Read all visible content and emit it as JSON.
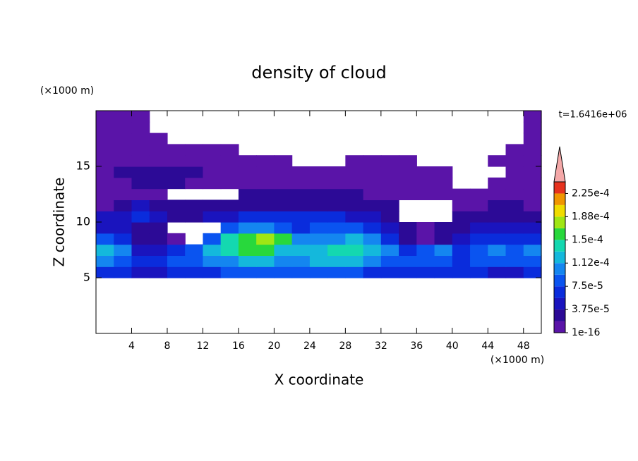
{
  "chart_data": {
    "type": "contour",
    "title": "density of cloud",
    "x_label": "X coordinate",
    "y_label": "Z coordinate",
    "x_unit": "(×1000 m)",
    "y_unit": "(×1000 m)",
    "annotation": "t=1.6416e+06",
    "xlim": [
      0,
      50
    ],
    "ylim": [
      0,
      20
    ],
    "xticks": [
      4,
      8,
      12,
      16,
      20,
      24,
      28,
      32,
      36,
      40,
      44,
      48
    ],
    "yticks": [
      5,
      10,
      15
    ],
    "x": [
      1,
      3,
      5,
      7,
      9,
      11,
      13,
      15,
      17,
      19,
      21,
      23,
      25,
      27,
      29,
      31,
      33,
      35,
      37,
      39,
      41,
      43,
      45,
      47,
      49
    ],
    "y": [
      5.5,
      6.5,
      7.5,
      8.5,
      9.5,
      10.5,
      11.5,
      12.5,
      13.5,
      14.5,
      15.5,
      16.5,
      17.5,
      18.5,
      19.5
    ],
    "z": [
      [
        6e-05,
        6e-05,
        5e-05,
        5e-05,
        6e-05,
        7e-05,
        7e-05,
        8e-05,
        8e-05,
        8e-05,
        8e-05,
        8e-05,
        8e-05,
        8e-05,
        8e-05,
        7e-05,
        6e-05,
        6e-05,
        7e-05,
        7e-05,
        6e-05,
        6e-05,
        5e-05,
        5e-05,
        6e-05
      ],
      [
        0.00011,
        9e-05,
        6e-05,
        7e-05,
        8e-05,
        9e-05,
        0.0001,
        0.00011,
        0.00012,
        0.00012,
        0.00011,
        0.00011,
        0.00012,
        0.00012,
        0.00012,
        0.00011,
        9e-05,
        8e-05,
        9e-05,
        9e-05,
        7e-05,
        8e-05,
        8e-05,
        9e-05,
        8e-05
      ],
      [
        0.00012,
        0.0001,
        5e-05,
        4e-05,
        6e-05,
        9e-05,
        0.00012,
        0.00014,
        0.00015,
        0.00015,
        0.00013,
        0.00012,
        0.00013,
        0.00014,
        0.000145,
        0.00013,
        0.0001,
        6e-05,
        8e-05,
        0.00011,
        6e-05,
        8e-05,
        0.0001,
        9e-05,
        0.0001
      ],
      [
        8e-05,
        6e-05,
        3e-05,
        2e-05,
        1.5e-05,
        null,
        9e-05,
        0.000145,
        0.00016,
        0.000175,
        0.00016,
        0.00011,
        0.0001,
        0.00011,
        0.00012,
        0.00011,
        7e-05,
        2e-05,
        1e-05,
        3e-05,
        4e-05,
        6e-05,
        7e-05,
        6e-05,
        7e-05
      ],
      [
        5e-05,
        4e-05,
        3e-05,
        3e-05,
        null,
        null,
        null,
        9e-05,
        0.0001,
        0.0001,
        9e-05,
        7e-05,
        8e-05,
        9e-05,
        9e-05,
        7e-05,
        4e-05,
        2e-05,
        1e-05,
        2e-05,
        3e-05,
        4e-05,
        5e-05,
        4e-05,
        4e-05
      ],
      [
        5e-05,
        4e-05,
        6e-05,
        4e-05,
        3e-05,
        3e-05,
        4e-05,
        5e-05,
        6e-05,
        6e-05,
        6e-05,
        6e-05,
        6e-05,
        6e-05,
        5e-05,
        4e-05,
        3e-05,
        null,
        null,
        null,
        2e-05,
        2e-05,
        3e-05,
        3e-05,
        3e-05
      ],
      [
        1e-05,
        2e-05,
        4e-05,
        3e-05,
        2.5e-05,
        3e-05,
        3e-05,
        3e-05,
        3e-05,
        3e-05,
        3e-05,
        3e-05,
        3e-05,
        3e-05,
        3e-05,
        2e-05,
        2e-05,
        null,
        null,
        null,
        1e-05,
        1e-05,
        2e-05,
        2e-05,
        1e-05
      ],
      [
        1e-05,
        1e-05,
        1e-05,
        1e-05,
        null,
        null,
        null,
        null,
        2e-05,
        2e-05,
        2e-05,
        2e-05,
        2e-05,
        2e-05,
        2e-05,
        1e-05,
        1e-05,
        1e-05,
        1e-05,
        1e-05,
        1e-05,
        1e-05,
        1e-05,
        1e-05,
        1e-05
      ],
      [
        1e-05,
        1e-05,
        2e-05,
        2e-05,
        2e-05,
        1e-05,
        1e-05,
        1e-05,
        1e-05,
        1e-05,
        1e-05,
        1e-05,
        1e-05,
        1e-05,
        1e-05,
        1e-05,
        1e-05,
        1e-05,
        1e-05,
        1e-05,
        null,
        null,
        1e-05,
        1e-05,
        1e-05
      ],
      [
        1e-05,
        2e-05,
        2e-05,
        2.5e-05,
        2e-05,
        2e-05,
        1e-05,
        1e-05,
        1e-05,
        1e-05,
        1e-05,
        1e-05,
        1e-05,
        1e-05,
        1e-05,
        1e-05,
        1e-05,
        1e-05,
        1e-05,
        1e-05,
        null,
        null,
        null,
        1e-05,
        1e-05
      ],
      [
        1e-05,
        1e-05,
        1e-05,
        1e-05,
        1e-05,
        1e-05,
        1e-05,
        1e-05,
        1e-05,
        1e-05,
        1e-05,
        null,
        null,
        null,
        1e-05,
        1e-05,
        1e-05,
        1e-05,
        null,
        null,
        null,
        null,
        1e-05,
        1e-05,
        1e-05
      ],
      [
        1e-05,
        1e-05,
        1e-05,
        1e-05,
        1e-05,
        1e-05,
        1e-05,
        1e-05,
        null,
        null,
        null,
        null,
        null,
        null,
        null,
        null,
        null,
        null,
        null,
        null,
        null,
        null,
        null,
        1e-05,
        1e-05
      ],
      [
        1e-05,
        1e-05,
        1e-05,
        1e-05,
        null,
        null,
        null,
        null,
        null,
        null,
        null,
        null,
        null,
        null,
        null,
        null,
        null,
        null,
        null,
        null,
        null,
        null,
        null,
        null,
        1e-05
      ],
      [
        1e-05,
        1e-05,
        1e-05,
        null,
        null,
        null,
        null,
        null,
        null,
        null,
        null,
        null,
        null,
        null,
        null,
        null,
        null,
        null,
        null,
        null,
        null,
        null,
        null,
        null,
        1e-05
      ],
      [
        1e-05,
        1e-05,
        1e-05,
        null,
        null,
        null,
        null,
        null,
        null,
        null,
        null,
        null,
        null,
        null,
        null,
        null,
        null,
        null,
        null,
        null,
        null,
        null,
        null,
        null,
        1e-05
      ]
    ],
    "colorbar": {
      "levels": [
        1e-16,
        1.875e-05,
        3.75e-05,
        5.625e-05,
        7.5e-05,
        9.375e-05,
        0.0001125,
        0.00013125,
        0.00015,
        0.00016875,
        0.0001875,
        0.00020625,
        0.000225,
        0.00024375
      ],
      "colors": [
        "#5a14a8",
        "#2c0a96",
        "#1a14be",
        "#0a2cdc",
        "#0a54f0",
        "#1486f0",
        "#14b8dc",
        "#14d8b0",
        "#28d83c",
        "#a0e614",
        "#f0dc00",
        "#f09600",
        "#e6321e"
      ],
      "ticks": [
        1e-16,
        {
          "value": 3.75e-05,
          "label": "3.75e-5"
        },
        {
          "value": 7.5e-05,
          "label": "7.5e-5"
        },
        {
          "value": 0.0001125,
          "label": "1.12e-4"
        },
        {
          "value": 0.00015,
          "label": "1.5e-4"
        },
        {
          "value": 0.0001875,
          "label": "1.88e-4"
        },
        {
          "value": 0.000225,
          "label": "2.25e-4"
        }
      ]
    }
  }
}
